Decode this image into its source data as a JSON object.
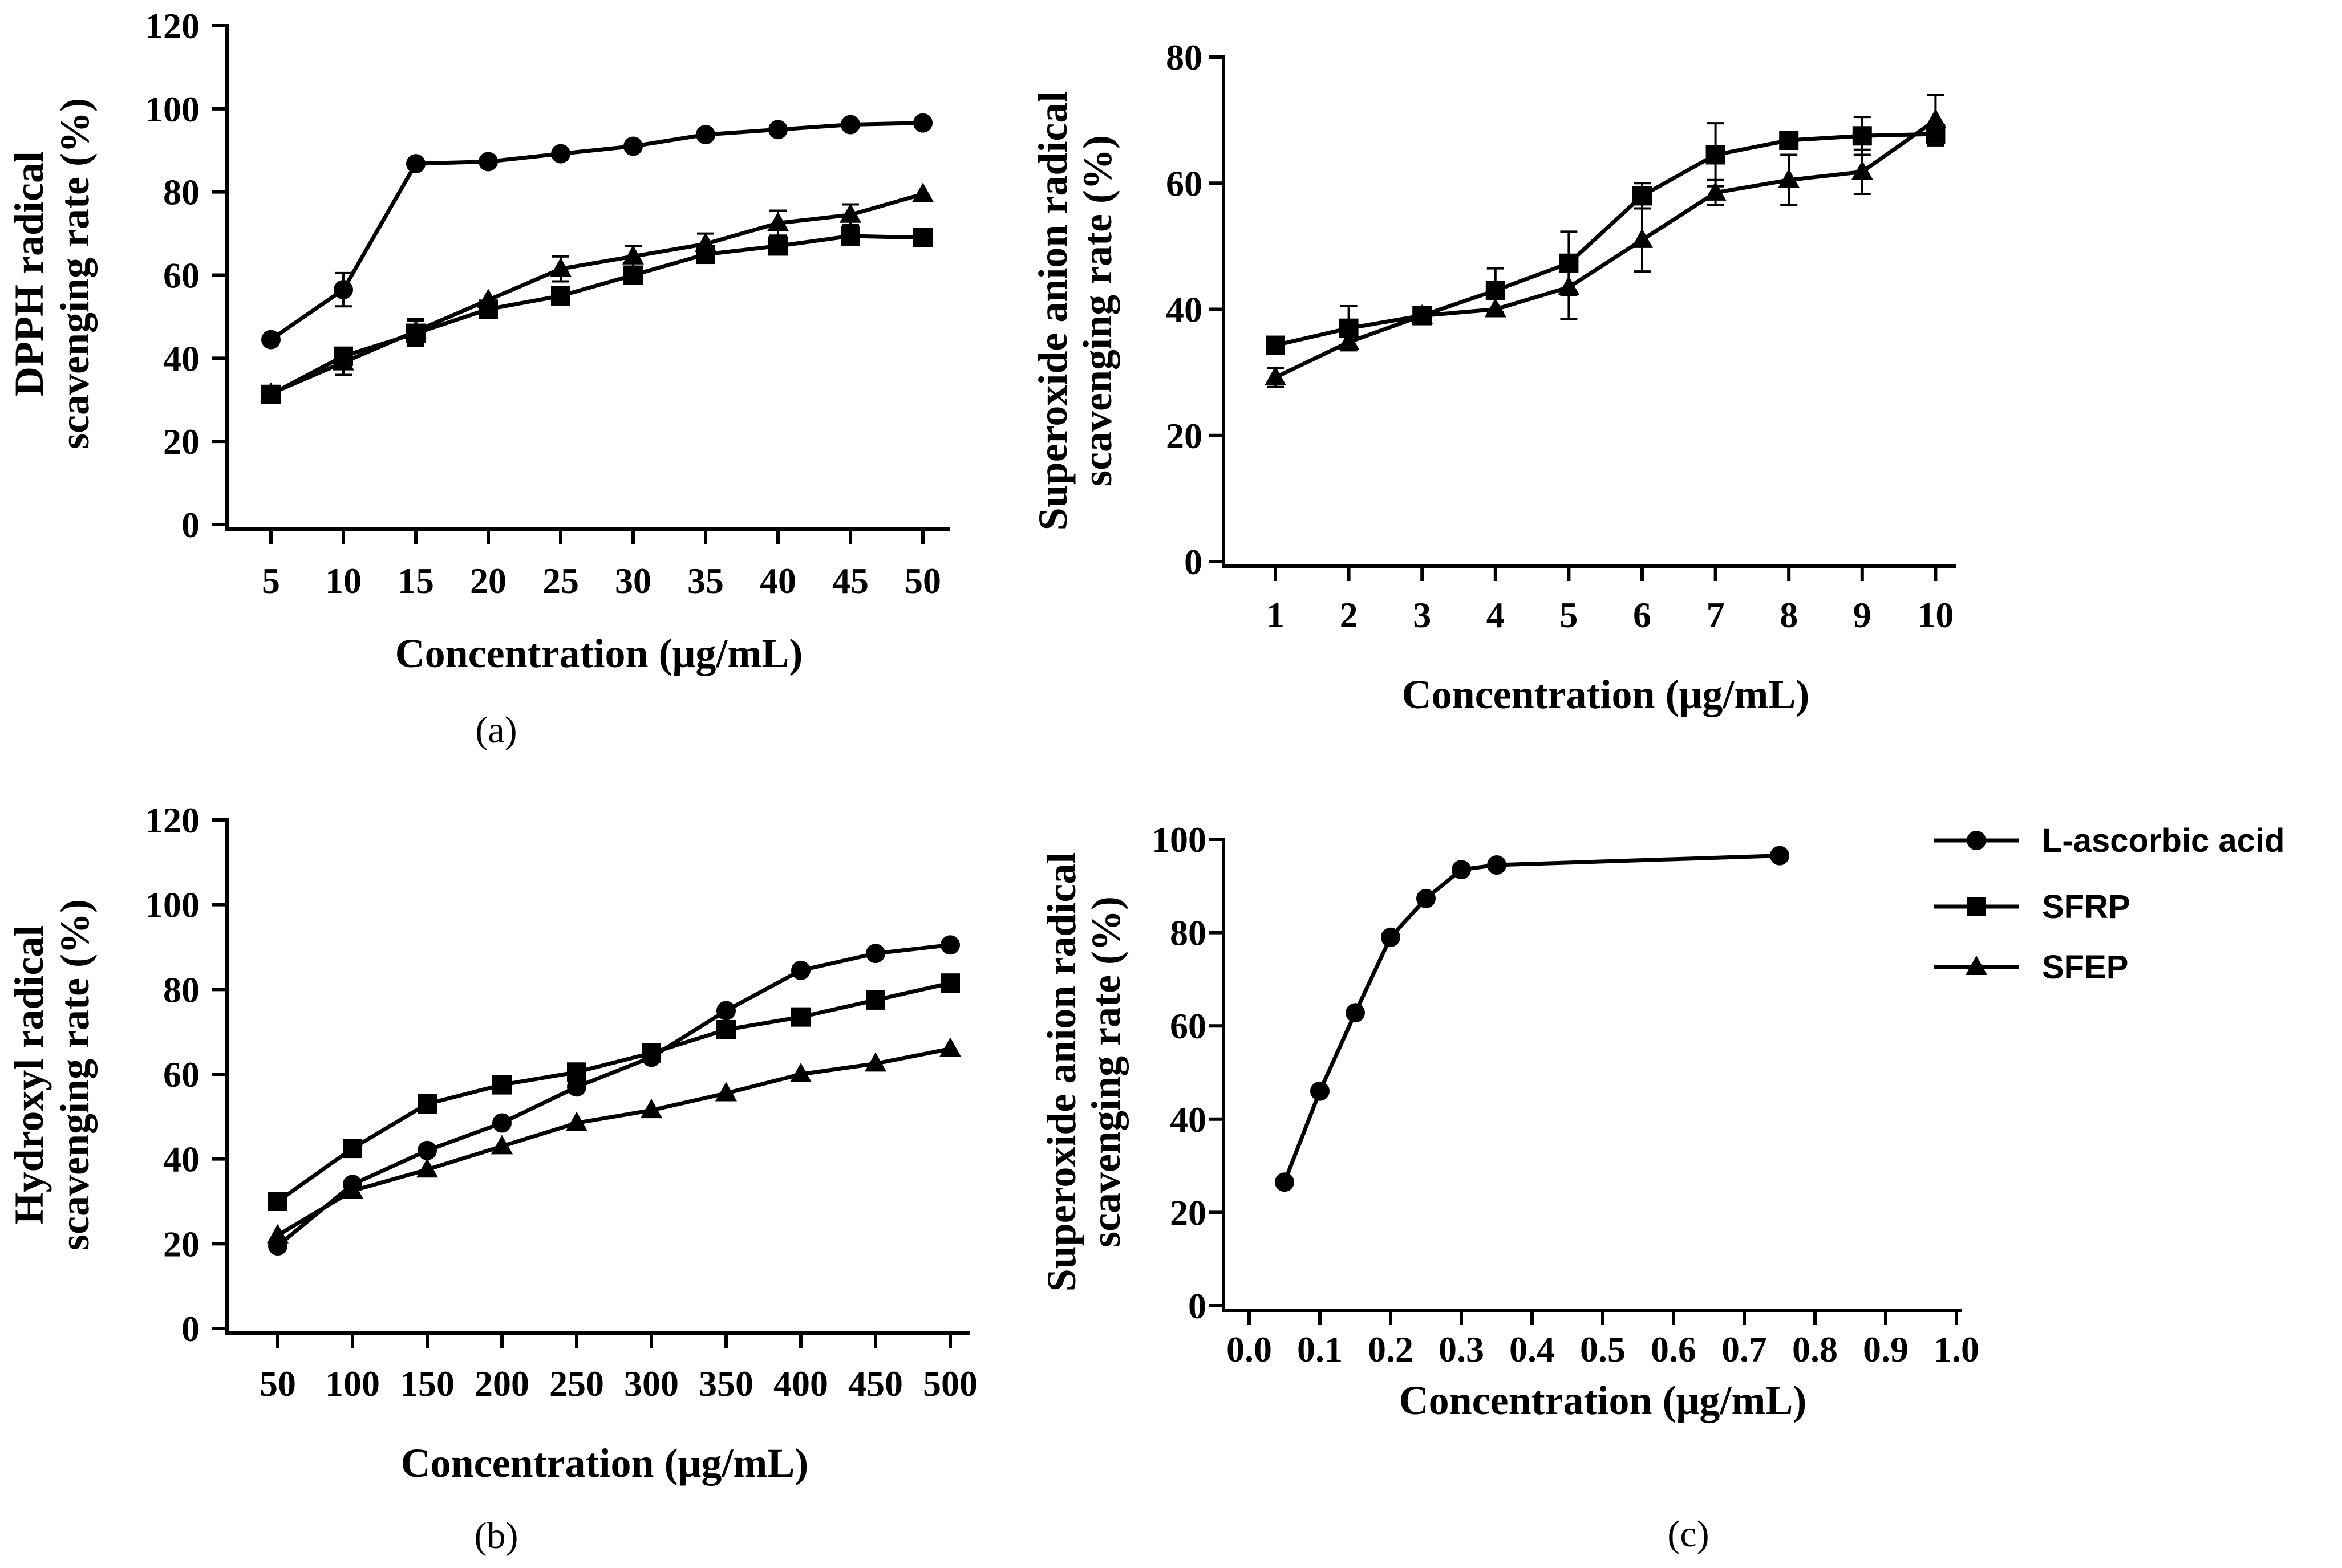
{
  "colors": {
    "ink": "#000000",
    "background": "#ffffff"
  },
  "legend": {
    "items": [
      {
        "label": "L-ascorbic acid",
        "marker": "circle"
      },
      {
        "label": "SFRP",
        "marker": "square"
      },
      {
        "label": "SFEP",
        "marker": "triangle"
      }
    ]
  },
  "chart_data": [
    {
      "id": "a",
      "type": "line",
      "panel_label": "(a)",
      "title": "",
      "xlabel": "Concentration  (μg/mL)",
      "ylabel": [
        "DPPH radical",
        "scavenging rate (%)"
      ],
      "x_categories": [
        "5",
        "10",
        "15",
        "20",
        "25",
        "30",
        "35",
        "40",
        "45",
        "50"
      ],
      "ylim": [
        0,
        120
      ],
      "yticks": [
        0,
        20,
        40,
        60,
        80,
        100,
        120
      ],
      "series": [
        {
          "name": "L-ascorbic acid",
          "marker": "circle",
          "values": [
            44.5,
            56.5,
            86.8,
            87.3,
            89.2,
            91.0,
            93.8,
            95.0,
            96.2,
            96.6
          ],
          "errors": [
            0,
            4,
            0,
            0,
            0,
            0,
            0,
            0,
            0,
            0
          ]
        },
        {
          "name": "SFRP",
          "marker": "square",
          "values": [
            31.3,
            40.5,
            46.0,
            51.8,
            55.0,
            60.0,
            65.0,
            67.0,
            69.4,
            69.0
          ],
          "errors": [
            0,
            2,
            3,
            0,
            0,
            0,
            0,
            0,
            0,
            0
          ]
        },
        {
          "name": "SFEP",
          "marker": "triangle",
          "values": [
            31.5,
            39.0,
            46.5,
            54.0,
            61.5,
            64.5,
            67.5,
            72.5,
            74.5,
            79.5
          ],
          "errors": [
            0,
            3,
            3,
            0,
            3,
            2.5,
            2.5,
            3,
            2.5,
            0
          ]
        }
      ]
    },
    {
      "id": "a2",
      "type": "line",
      "panel_label": "",
      "title": "",
      "xlabel": "Concentration  (μg/mL)",
      "ylabel": [
        "Superoxide anion radical",
        "scavenging rate (%)"
      ],
      "x_categories": [
        "1",
        "2",
        "3",
        "4",
        "5",
        "6",
        "7",
        "8",
        "9",
        "10"
      ],
      "ylim": [
        0,
        80
      ],
      "yticks": [
        0,
        20,
        40,
        60,
        80
      ],
      "series": [
        {
          "name": "SFRP",
          "marker": "square",
          "values": [
            34.3,
            37.0,
            39.0,
            43.0,
            47.3,
            58.0,
            64.5,
            66.8,
            67.5,
            67.8
          ],
          "errors": [
            0,
            3.5,
            0,
            3.5,
            5,
            2,
            5,
            0,
            3,
            0
          ]
        },
        {
          "name": "SFEP",
          "marker": "triangle",
          "values": [
            29.2,
            34.8,
            39.0,
            40.0,
            43.5,
            51.0,
            58.5,
            60.5,
            61.8,
            70.0
          ],
          "errors": [
            1.5,
            0,
            0,
            0,
            5,
            5,
            2,
            4,
            3.5,
            4
          ]
        }
      ]
    },
    {
      "id": "b",
      "type": "line",
      "panel_label": "(b)",
      "title": "",
      "xlabel": "Concentration  (μg/mL)",
      "ylabel": [
        "Hydroxyl radical",
        "scavenging rate (%)"
      ],
      "x_categories": [
        "50",
        "100",
        "150",
        "200",
        "250",
        "300",
        "350",
        "400",
        "450",
        "500"
      ],
      "ylim": [
        0,
        120
      ],
      "yticks": [
        0,
        20,
        40,
        60,
        80,
        100,
        120
      ],
      "series": [
        {
          "name": "L-ascorbic acid",
          "marker": "circle",
          "values": [
            19.5,
            34.0,
            42.0,
            48.5,
            57.0,
            64.0,
            75.0,
            84.5,
            88.5,
            90.5
          ],
          "errors": [
            0,
            0,
            0,
            0,
            0,
            0,
            0,
            0,
            0,
            0
          ]
        },
        {
          "name": "SFRP",
          "marker": "square",
          "values": [
            30.0,
            42.5,
            53.0,
            57.5,
            60.5,
            65.0,
            70.5,
            73.5,
            77.5,
            81.5
          ],
          "errors": [
            0,
            0,
            0,
            0,
            0,
            0,
            0,
            0,
            0,
            0
          ]
        },
        {
          "name": "SFEP",
          "marker": "triangle",
          "values": [
            22.0,
            32.5,
            37.5,
            43.0,
            48.5,
            51.5,
            55.5,
            60.0,
            62.5,
            66.0
          ],
          "errors": [
            0,
            0,
            0,
            0,
            0,
            0,
            0,
            0,
            0,
            0
          ]
        }
      ]
    },
    {
      "id": "c",
      "type": "line",
      "panel_label": "(c)",
      "title": "",
      "xlabel": "Concentration  (μg/mL)",
      "ylabel": [
        "Superoxide anion radical",
        "scavenging rate (%)"
      ],
      "x": [
        0.05,
        0.1,
        0.15,
        0.2,
        0.25,
        0.3,
        0.35,
        0.75
      ],
      "xlim": [
        0.0,
        1.0
      ],
      "xticks": [
        "0.0",
        "0.1",
        "0.2",
        "0.3",
        "0.4",
        "0.5",
        "0.6",
        "0.7",
        "0.8",
        "0.9",
        "1.0"
      ],
      "ylim": [
        0,
        100
      ],
      "yticks": [
        0,
        20,
        40,
        60,
        80,
        100
      ],
      "series": [
        {
          "name": "L-ascorbic acid",
          "marker": "circle",
          "values": [
            26.5,
            46.0,
            62.8,
            79.0,
            87.3,
            93.5,
            94.5,
            96.5
          ]
        }
      ]
    }
  ]
}
